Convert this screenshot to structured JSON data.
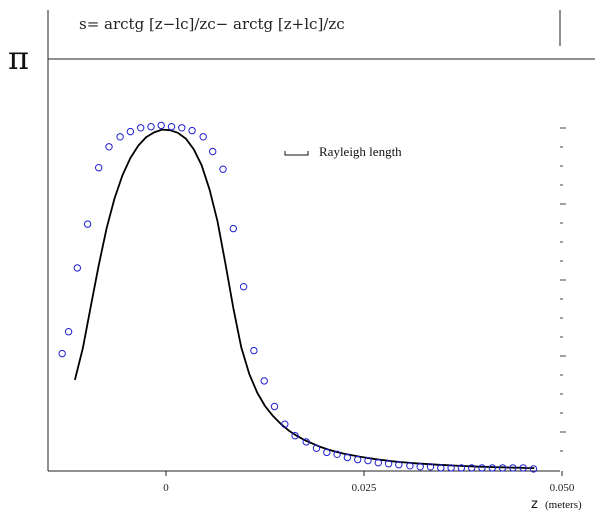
{
  "formula": "s= arctg [z−lᴄ]/zᴄ− arctg [z+lᴄ]/zᴄ",
  "chart_data": {
    "type": "scatter",
    "title": "",
    "xlabel_var": "z",
    "xlabel_unit": "(meters)",
    "ylabel": "",
    "y_top_label": "π",
    "xlim": [
      -0.0125,
      0.0525
    ],
    "ylim": [
      0,
      3.14159
    ],
    "xticks": [
      {
        "value": 0,
        "label": "0"
      },
      {
        "value": 0.025,
        "label": "0.025"
      },
      {
        "value": 0.05,
        "label": "0.050"
      }
    ],
    "legend": {
      "label": "Rayleigh length",
      "position": "upper-right"
    },
    "series": [
      {
        "kind": "line",
        "color": "#000000",
        "x": [
          -0.0115,
          -0.0105,
          -0.0095,
          -0.0085,
          -0.0075,
          -0.0065,
          -0.0055,
          -0.0045,
          -0.0035,
          -0.0025,
          -0.0015,
          -0.0005,
          0.0005,
          0.0015,
          0.0025,
          0.0035,
          0.0045,
          0.0055,
          0.0065,
          0.0075,
          0.0085,
          0.0095,
          0.0105,
          0.0115,
          0.0125,
          0.0135,
          0.0145,
          0.0155,
          0.0165,
          0.0175,
          0.0185,
          0.0195,
          0.0205,
          0.0215,
          0.0225,
          0.0235,
          0.0245,
          0.0255,
          0.0265,
          0.0275,
          0.0285,
          0.0295,
          0.0305,
          0.0315,
          0.0325,
          0.0335,
          0.0345,
          0.0355,
          0.0365,
          0.0375,
          0.0385,
          0.0395,
          0.0405,
          0.0415,
          0.0425,
          0.0435,
          0.0445,
          0.0455,
          0.0465
        ],
        "y": [
          0.695,
          0.935,
          1.256,
          1.568,
          1.851,
          2.078,
          2.254,
          2.387,
          2.481,
          2.546,
          2.582,
          2.603,
          2.599,
          2.579,
          2.535,
          2.454,
          2.332,
          2.145,
          1.904,
          1.582,
          1.244,
          0.945,
          0.741,
          0.599,
          0.496,
          0.42,
          0.359,
          0.308,
          0.269,
          0.236,
          0.209,
          0.184,
          0.163,
          0.146,
          0.132,
          0.12,
          0.109,
          0.099,
          0.09,
          0.082,
          0.075,
          0.069,
          0.064,
          0.059,
          0.055,
          0.051,
          0.047,
          0.044,
          0.041,
          0.038,
          0.036,
          0.033,
          0.031,
          0.029,
          0.028,
          0.026,
          0.025,
          0.023,
          0.022
        ]
      },
      {
        "kind": "scatter",
        "color": "#1f1fd0",
        "x": [
          -0.0131,
          -0.0123,
          -0.0112,
          -0.0099,
          -0.0085,
          -0.0072,
          -0.0058,
          -0.0045,
          -0.0032,
          -0.0019,
          -0.0006,
          0.0007,
          0.002,
          0.0033,
          0.0047,
          0.0059,
          0.0072,
          0.0085,
          0.0098,
          0.0111,
          0.0124,
          0.0137,
          0.015,
          0.0163,
          0.0177,
          0.019,
          0.0203,
          0.0216,
          0.0229,
          0.0242,
          0.0255,
          0.0268,
          0.0281,
          0.0294,
          0.0308,
          0.0321,
          0.0334,
          0.0347,
          0.036,
          0.0373,
          0.0386,
          0.0399,
          0.0412,
          0.0425,
          0.0438,
          0.0451,
          0.0464
        ],
        "y": [
          0.895,
          1.062,
          1.549,
          1.883,
          2.313,
          2.472,
          2.548,
          2.588,
          2.617,
          2.625,
          2.635,
          2.625,
          2.617,
          2.596,
          2.548,
          2.436,
          2.301,
          1.848,
          1.405,
          0.918,
          0.687,
          0.492,
          0.357,
          0.269,
          0.222,
          0.174,
          0.142,
          0.127,
          0.103,
          0.087,
          0.079,
          0.063,
          0.056,
          0.048,
          0.04,
          0.032,
          0.032,
          0.024,
          0.024,
          0.024,
          0.024,
          0.024,
          0.024,
          0.024,
          0.024,
          0.024,
          0.016
        ]
      }
    ]
  }
}
